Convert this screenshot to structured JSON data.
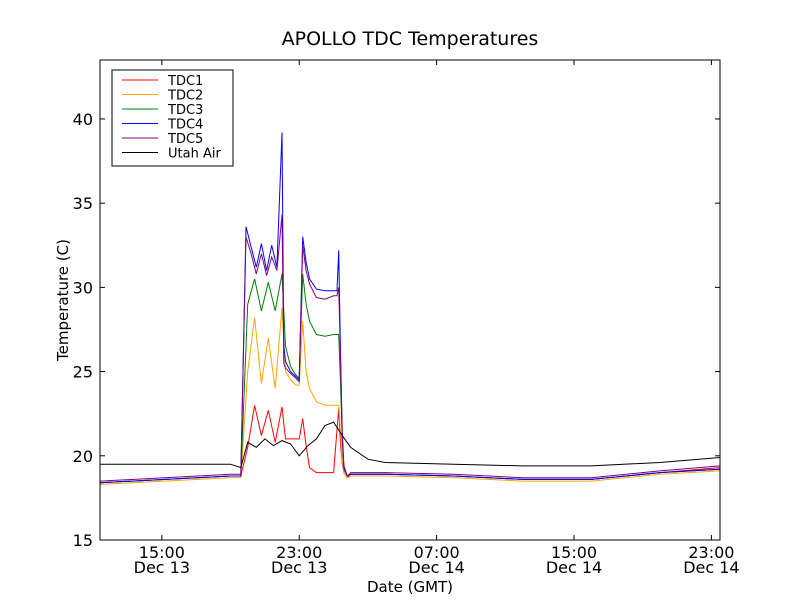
{
  "chart_data": {
    "type": "line",
    "title": "APOLLO TDC Temperatures",
    "xlabel": "Date (GMT)",
    "ylabel": "Temperature (C)",
    "xlim": [
      11.4,
      47.5
    ],
    "ylim": [
      15,
      43.5
    ],
    "x_unit": "hours since Dec 13 00:00 GMT",
    "x_ticks": [
      {
        "value": 15,
        "time": "15:00",
        "date": "Dec 13"
      },
      {
        "value": 23,
        "time": "23:00",
        "date": "Dec 13"
      },
      {
        "value": 31,
        "time": "07:00",
        "date": "Dec 14"
      },
      {
        "value": 39,
        "time": "15:00",
        "date": "Dec 14"
      },
      {
        "value": 47,
        "time": "23:00",
        "date": "Dec 14"
      }
    ],
    "y_ticks": [
      15,
      20,
      25,
      30,
      35,
      40
    ],
    "grid": false,
    "legend_position": "top-left",
    "series": [
      {
        "name": "TDC1",
        "color": "#ff0000",
        "x": [
          11.4,
          19.0,
          19.6,
          20.0,
          20.4,
          20.8,
          21.2,
          21.6,
          22.0,
          22.2,
          22.5,
          22.8,
          23.0,
          23.2,
          23.4,
          23.6,
          24.0,
          24.5,
          25.0,
          25.3,
          25.4,
          25.5,
          25.6,
          25.8,
          26.0,
          27.0,
          28.0,
          32.0,
          36.0,
          40.0,
          44.0,
          47.5
        ],
        "y": [
          18.4,
          18.8,
          18.8,
          20.5,
          23.0,
          21.2,
          22.7,
          20.8,
          22.9,
          21.0,
          21.0,
          21.0,
          21.0,
          22.2,
          20.6,
          19.3,
          19.0,
          19.0,
          19.0,
          22.8,
          20.8,
          19.6,
          19.0,
          18.7,
          18.9,
          18.9,
          18.9,
          18.8,
          18.6,
          18.6,
          19.0,
          19.3
        ]
      },
      {
        "name": "TDC2",
        "color": "#ffa500",
        "x": [
          11.4,
          19.0,
          19.6,
          20.0,
          20.4,
          20.8,
          21.2,
          21.6,
          22.0,
          22.2,
          22.5,
          22.8,
          23.0,
          23.2,
          23.4,
          23.6,
          24.0,
          24.5,
          25.0,
          25.3,
          25.4,
          25.5,
          25.6,
          25.8,
          26.0,
          27.0,
          28.0,
          32.0,
          36.0,
          40.0,
          44.0,
          47.5
        ],
        "y": [
          18.3,
          18.7,
          18.7,
          25.0,
          28.2,
          24.3,
          27.0,
          24.0,
          28.8,
          25.0,
          24.5,
          24.2,
          24.2,
          28.0,
          25.0,
          24.0,
          23.2,
          23.0,
          23.0,
          23.0,
          21.5,
          19.8,
          19.0,
          18.7,
          18.8,
          18.8,
          18.8,
          18.7,
          18.5,
          18.5,
          18.9,
          19.1
        ]
      },
      {
        "name": "TDC3",
        "color": "#008000",
        "x": [
          11.4,
          19.0,
          19.6,
          20.0,
          20.4,
          20.8,
          21.2,
          21.6,
          22.0,
          22.2,
          22.5,
          22.8,
          23.0,
          23.2,
          23.4,
          23.6,
          24.0,
          24.5,
          25.0,
          25.3,
          25.4,
          25.5,
          25.6,
          25.8,
          26.0,
          27.0,
          28.0,
          32.0,
          36.0,
          40.0,
          44.0,
          47.5
        ],
        "y": [
          18.4,
          18.8,
          18.8,
          29.0,
          30.5,
          28.6,
          30.3,
          28.6,
          30.8,
          26.5,
          25.3,
          24.8,
          24.6,
          30.8,
          29.0,
          28.0,
          27.2,
          27.1,
          27.2,
          27.2,
          24.5,
          21.0,
          19.2,
          18.8,
          18.9,
          18.9,
          18.9,
          18.8,
          18.6,
          18.6,
          19.0,
          19.2
        ]
      },
      {
        "name": "TDC4",
        "color": "#0000ff",
        "x": [
          11.4,
          19.0,
          19.6,
          19.9,
          20.2,
          20.5,
          20.8,
          21.1,
          21.4,
          21.7,
          22.0,
          22.1,
          22.2,
          22.5,
          22.8,
          23.0,
          23.2,
          23.4,
          23.6,
          24.0,
          24.5,
          25.0,
          25.2,
          25.3,
          25.4,
          25.5,
          25.6,
          25.8,
          26.0,
          27.0,
          28.0,
          32.0,
          36.0,
          40.0,
          44.0,
          47.5
        ],
        "y": [
          18.4,
          18.8,
          18.8,
          33.6,
          32.4,
          31.2,
          32.6,
          31.0,
          32.5,
          31.2,
          39.2,
          26.5,
          25.6,
          25.0,
          24.7,
          24.5,
          33.0,
          31.5,
          30.5,
          29.9,
          29.8,
          29.8,
          29.8,
          32.2,
          26.5,
          21.5,
          19.4,
          18.8,
          18.9,
          18.9,
          18.9,
          18.8,
          18.6,
          18.6,
          19.0,
          19.2
        ]
      },
      {
        "name": "TDC5",
        "color": "#800080",
        "x": [
          11.4,
          19.0,
          19.6,
          19.9,
          20.2,
          20.5,
          20.8,
          21.1,
          21.4,
          21.7,
          22.0,
          22.1,
          22.2,
          22.5,
          22.8,
          23.0,
          23.2,
          23.4,
          23.6,
          24.0,
          24.5,
          25.0,
          25.2,
          25.3,
          25.4,
          25.5,
          25.6,
          25.8,
          26.0,
          27.0,
          28.0,
          32.0,
          36.0,
          40.0,
          44.0,
          47.5
        ],
        "y": [
          18.5,
          18.9,
          18.9,
          33.0,
          32.0,
          30.8,
          32.0,
          30.7,
          31.8,
          31.0,
          34.3,
          25.5,
          25.2,
          24.9,
          24.6,
          24.4,
          32.5,
          31.0,
          30.2,
          29.4,
          29.3,
          29.5,
          29.5,
          30.0,
          26.0,
          21.2,
          19.3,
          18.8,
          19.0,
          19.0,
          19.0,
          18.9,
          18.7,
          18.7,
          19.1,
          19.4
        ]
      },
      {
        "name": "Utah Air",
        "color": "#000000",
        "x": [
          11.4,
          19.0,
          19.6,
          20.0,
          20.5,
          21.0,
          21.5,
          22.0,
          22.5,
          23.0,
          23.5,
          24.0,
          24.5,
          25.0,
          25.5,
          26.0,
          27.0,
          28.0,
          32.0,
          36.0,
          40.0,
          44.0,
          47.5
        ],
        "y": [
          19.5,
          19.5,
          19.3,
          20.8,
          20.5,
          21.0,
          20.6,
          20.9,
          20.7,
          20.0,
          20.6,
          21.0,
          21.8,
          22.0,
          21.2,
          20.5,
          19.8,
          19.6,
          19.5,
          19.4,
          19.4,
          19.6,
          19.9
        ]
      }
    ]
  }
}
